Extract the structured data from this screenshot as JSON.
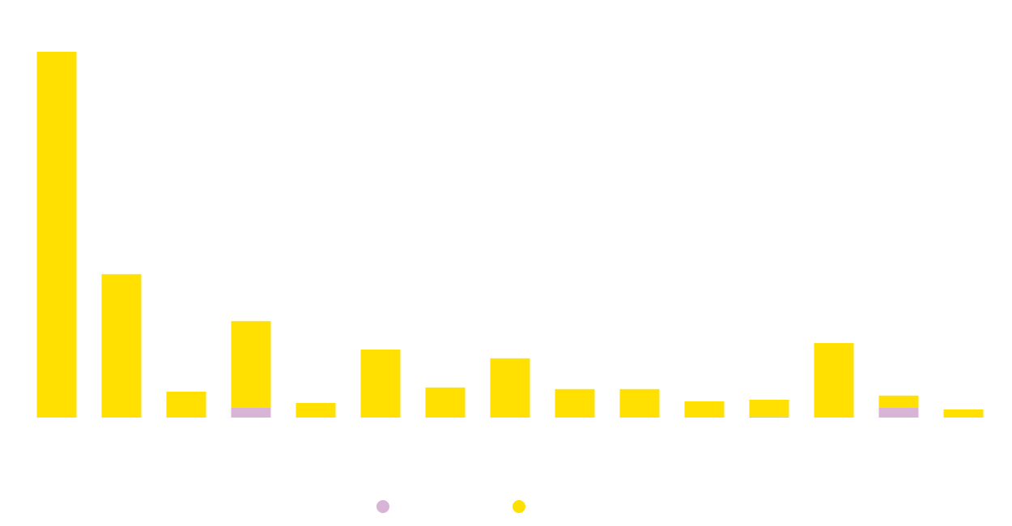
{
  "chart_data": {
    "type": "bar",
    "stacked": true,
    "categories": [
      "",
      "",
      "",
      "",
      "",
      "",
      "",
      "",
      "",
      "",
      "",
      "",
      "",
      "",
      ""
    ],
    "series": [
      {
        "color": "#d8b5d6",
        "values": [
          0,
          0,
          0,
          3,
          0,
          0,
          0,
          0,
          0,
          0,
          0,
          0.3,
          0,
          3,
          0
        ]
      },
      {
        "color": "#ffe000",
        "values": [
          113,
          44.3,
          8,
          26.8,
          4.5,
          21,
          9.3,
          18.3,
          8.8,
          8.8,
          5,
          5.2,
          23,
          3.8,
          2.5
        ]
      }
    ],
    "ylim": [
      0,
      115
    ],
    "grid": false,
    "legend": "bottom"
  }
}
